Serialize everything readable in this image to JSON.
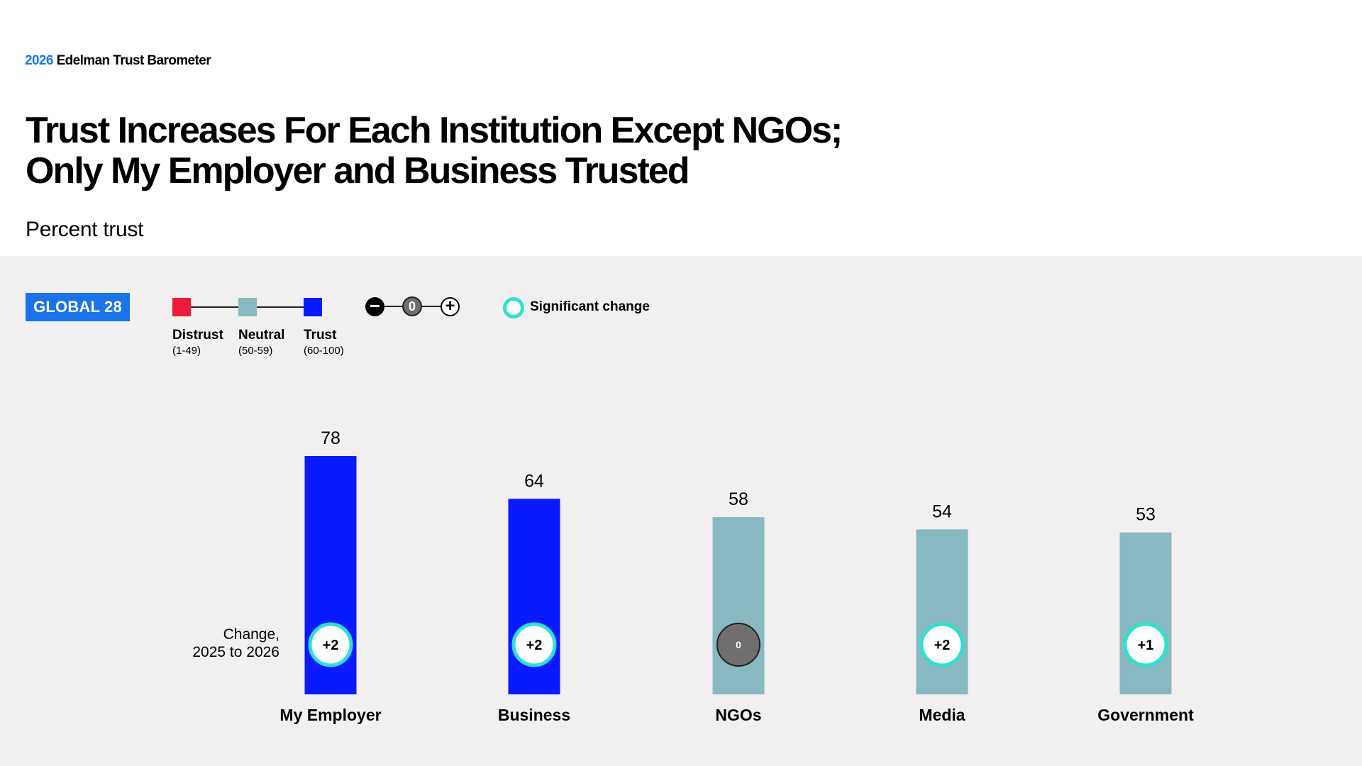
{
  "header": {
    "brand_year": "2026",
    "brand_name": "Edelman Trust Barometer",
    "title_line1": "Trust Increases For Each Institution Except NGOs;",
    "title_line2": "Only My Employer and Business Trusted",
    "subtitle": "Percent trust"
  },
  "legend": {
    "badge": "GLOBAL 28",
    "scale": [
      {
        "label": "Distrust",
        "range": "(1-49)",
        "color": "#ee1c3a"
      },
      {
        "label": "Neutral",
        "range": "(50-59)",
        "color": "#89b9c0"
      },
      {
        "label": "Trust",
        "range": "(60-100)",
        "color": "#0a1aff"
      }
    ],
    "change_symbols": [
      "−",
      "0",
      "+"
    ],
    "significant_label": "Significant change"
  },
  "change_axis_label": {
    "line1": "Change,",
    "line2": "2025 to 2026"
  },
  "colors": {
    "trust": "#0a1aff",
    "neutral": "#89b9c0",
    "significant_ring": "#2de0d0",
    "no_change_fill": "#6f6d6e",
    "panel": "#f1efef"
  },
  "chart_data": {
    "type": "bar",
    "title": "Percent trust",
    "categories": [
      "My Employer",
      "Business",
      "NGOs",
      "Media",
      "Government"
    ],
    "values": [
      78,
      64,
      58,
      54,
      53
    ],
    "change_2025_to_2026": [
      "+2",
      "+2",
      "0",
      "+2",
      "+1"
    ],
    "significant": [
      true,
      true,
      false,
      true,
      true
    ],
    "level": [
      "Trust",
      "Trust",
      "Neutral",
      "Neutral",
      "Neutral"
    ],
    "ylim": [
      0,
      100
    ],
    "grid": false,
    "legend": "top-left"
  }
}
